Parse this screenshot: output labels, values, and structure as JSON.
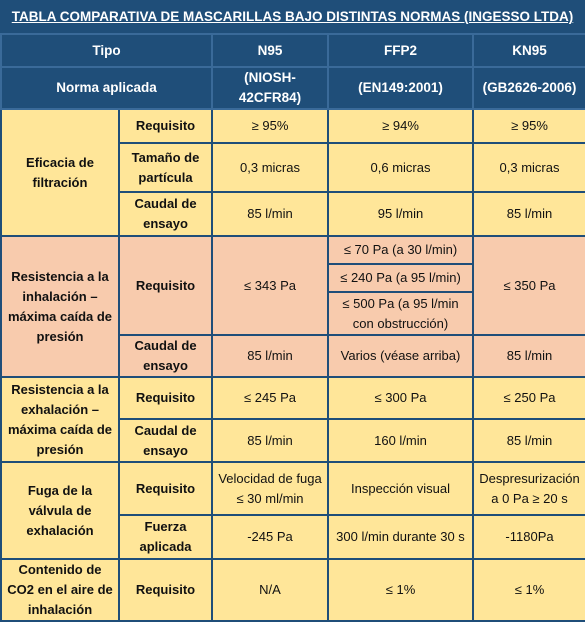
{
  "title": "TABLA COMPARATIVA DE MASCARILLAS BAJO DISTINTAS NORMAS (INGESSO LTDA)",
  "header": {
    "tipo": "Tipo",
    "norma": "Norma aplicada",
    "cols": [
      {
        "name": "N95",
        "norma": "(NIOSH-42CFR84)"
      },
      {
        "name": "FFP2",
        "norma": "(EN149:2001)"
      },
      {
        "name": "KN95",
        "norma": "(GB2626-2006)"
      }
    ]
  },
  "eficacia": {
    "label": "Eficacia de filtración",
    "rows": [
      {
        "label": "Requisito",
        "n95": "≥ 95%",
        "ffp2": "≥ 94%",
        "kn95": "≥ 95%"
      },
      {
        "label": "Tamaño de partícula",
        "n95": "0,3 micras",
        "ffp2": "0,6 micras",
        "kn95": "0,3 micras"
      },
      {
        "label": "Caudal de ensayo",
        "n95": "85 l/min",
        "ffp2": "95 l/min",
        "kn95": "85 l/min"
      }
    ]
  },
  "inhalacion": {
    "label": "Resistencia a la inhalación – máxima caída de presión",
    "requisito": {
      "label": "Requisito",
      "n95": "≤ 343 Pa",
      "ffp2": [
        "≤ 70 Pa (a 30 l/min)",
        "≤ 240 Pa (a 95 l/min)",
        "≤ 500 Pa (a 95 l/min con obstrucción)"
      ],
      "kn95": "≤ 350 Pa"
    },
    "caudal": {
      "label": "Caudal de ensayo",
      "n95": "85 l/min",
      "ffp2": "Varios (véase arriba)",
      "kn95": "85 l/min"
    }
  },
  "exhalacion": {
    "label": "Resistencia a la exhalación – máxima caída de presión",
    "rows": [
      {
        "label": "Requisito",
        "n95": "≤ 245 Pa",
        "ffp2": "≤ 300 Pa",
        "kn95": "≤ 250 Pa"
      },
      {
        "label": "Caudal de ensayo",
        "n95": "85 l/min",
        "ffp2": "160 l/min",
        "kn95": "85 l/min"
      }
    ]
  },
  "fuga": {
    "label": "Fuga de la válvula de exhalación",
    "rows": [
      {
        "label": "Requisito",
        "n95": "Velocidad de fuga ≤ 30 ml/min",
        "ffp2": "Inspección visual",
        "kn95": "Despresurización a 0 Pa ≥ 20 s"
      },
      {
        "label": "Fuerza aplicada",
        "n95": "-245 Pa",
        "ffp2": "300 l/min durante 30 s",
        "kn95": "-1180Pa"
      }
    ]
  },
  "co2": {
    "label": "Contenido de CO2 en el aire de inhalación",
    "row": {
      "label": "Requisito",
      "n95": "N/A",
      "ffp2": "≤ 1%",
      "kn95": "≤ 1%"
    }
  },
  "colors": {
    "header_bg": "#1f4e79",
    "group_text": "#2e6eb3",
    "yellow": "#ffe699",
    "salmon": "#f8cbad"
  }
}
